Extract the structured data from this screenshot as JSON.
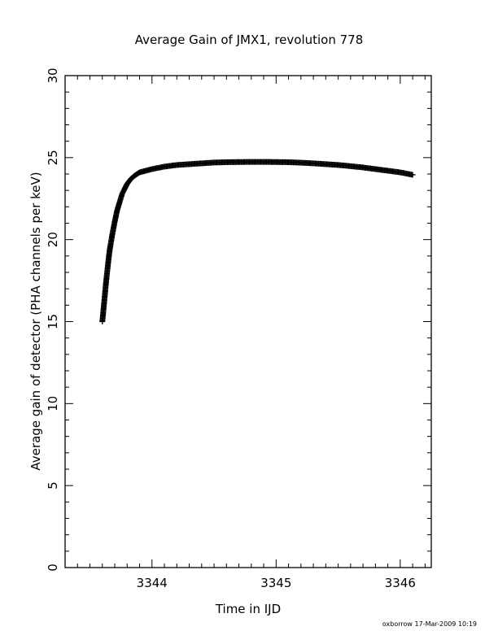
{
  "chart_data": {
    "type": "scatter",
    "title": "Average Gain of JMX1, revolution 778",
    "xlabel": "Time in IJD",
    "ylabel": "Average gain of detector (PHA channels per keV)",
    "xlim": [
      3343.3,
      3346.25
    ],
    "ylim": [
      0,
      30
    ],
    "x_ticks": [
      3344,
      3345,
      3346
    ],
    "y_ticks": [
      0,
      5,
      10,
      15,
      20,
      25,
      30
    ],
    "marker": "+",
    "grid": false,
    "series": [
      {
        "x": [
          3343.6,
          3343.61,
          3343.62,
          3343.63,
          3343.64,
          3343.65,
          3343.66,
          3343.68,
          3343.7,
          3343.72,
          3343.74,
          3343.76,
          3343.78,
          3343.8,
          3343.83,
          3343.86,
          3343.9,
          3343.95,
          3344.0,
          3344.1,
          3344.2,
          3344.3,
          3344.4,
          3344.5,
          3344.6,
          3344.7,
          3344.8,
          3344.9,
          3345.0,
          3345.1,
          3345.2,
          3345.3,
          3345.4,
          3345.5,
          3345.6,
          3345.7,
          3345.8,
          3345.9,
          3346.0,
          3346.1
        ],
        "y": [
          15.0,
          15.8,
          16.6,
          17.4,
          18.1,
          18.8,
          19.4,
          20.3,
          21.1,
          21.8,
          22.3,
          22.8,
          23.1,
          23.4,
          23.7,
          23.9,
          24.1,
          24.2,
          24.3,
          24.45,
          24.55,
          24.6,
          24.65,
          24.7,
          24.72,
          24.73,
          24.74,
          24.74,
          24.73,
          24.72,
          24.69,
          24.65,
          24.6,
          24.55,
          24.48,
          24.4,
          24.3,
          24.2,
          24.1,
          23.95
        ]
      }
    ]
  },
  "footer": {
    "stamp": "oxborrow 17-Mar-2009 10:19"
  }
}
